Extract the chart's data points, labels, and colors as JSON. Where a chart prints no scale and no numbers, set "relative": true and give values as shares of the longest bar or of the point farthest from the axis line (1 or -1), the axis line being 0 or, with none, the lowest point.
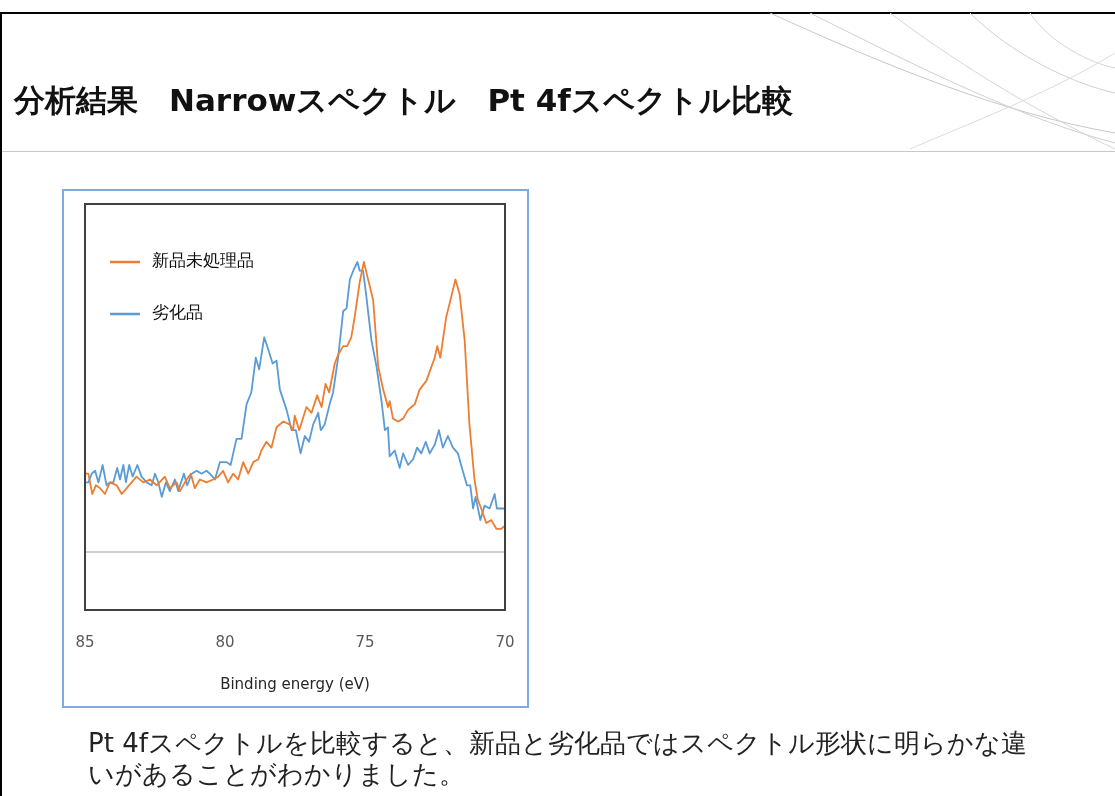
{
  "chart_data": {
    "type": "line",
    "title": "分析結果　Narrowスペクトル　Pt 4fスペクトル比較",
    "xlabel": "Binding energy (eV)",
    "relative": true,
    "xlim": [
      85,
      70
    ],
    "xticks": [
      85,
      80,
      75,
      70
    ],
    "grid": false,
    "legend": "top left",
    "marker": "none",
    "line_style": "solid",
    "annotations": [
      "Pt 4fスペクトルを比較すると、新品と劣化品ではスペクトル形状に明らかな違いがあることがわかりました。"
    ],
    "series": [
      {
        "name": "新品未処理品",
        "color": "#ed7d31",
        "x": [
          84.98,
          84.88,
          84.74,
          84.61,
          84.46,
          84.29,
          84.11,
          83.87,
          83.69,
          83.51,
          83.16,
          82.92,
          82.68,
          82.44,
          82.15,
          81.97,
          81.73,
          81.61,
          81.37,
          81.22,
          81.08,
          80.9,
          80.66,
          80.42,
          80.24,
          80.07,
          79.89,
          79.71,
          79.53,
          79.35,
          79.17,
          78.99,
          78.81,
          78.7,
          78.52,
          78.34,
          78.16,
          77.92,
          77.69,
          77.57,
          77.51,
          77.35,
          77.09,
          76.91,
          76.71,
          76.55,
          76.41,
          76.28,
          76.08,
          75.96,
          75.78,
          75.64,
          75.49,
          75.37,
          75.19,
          75.04,
          74.89,
          74.71,
          74.53,
          74.35,
          74.18,
          74.12,
          74.0,
          73.82,
          73.64,
          73.46,
          73.34,
          73.22,
          73.05,
          72.81,
          72.51,
          72.42,
          72.31,
          72.1,
          71.92,
          71.77,
          71.62,
          71.44,
          71.27,
          71.09,
          70.97,
          70.85,
          70.67,
          70.49,
          70.31,
          70.13,
          70.01
        ],
        "values": [
          0.27,
          0.27,
          0.2,
          0.23,
          0.22,
          0.2,
          0.24,
          0.23,
          0.2,
          0.22,
          0.26,
          0.24,
          0.25,
          0.23,
          0.26,
          0.22,
          0.24,
          0.21,
          0.25,
          0.27,
          0.22,
          0.25,
          0.24,
          0.25,
          0.26,
          0.28,
          0.24,
          0.27,
          0.25,
          0.31,
          0.27,
          0.31,
          0.32,
          0.35,
          0.38,
          0.36,
          0.43,
          0.45,
          0.44,
          0.42,
          0.47,
          0.42,
          0.5,
          0.48,
          0.54,
          0.5,
          0.58,
          0.55,
          0.65,
          0.68,
          0.71,
          0.71,
          0.74,
          0.81,
          0.93,
          1.0,
          0.94,
          0.87,
          0.64,
          0.56,
          0.5,
          0.52,
          0.46,
          0.45,
          0.46,
          0.49,
          0.5,
          0.51,
          0.56,
          0.59,
          0.67,
          0.71,
          0.67,
          0.81,
          0.88,
          0.94,
          0.89,
          0.73,
          0.44,
          0.25,
          0.18,
          0.15,
          0.1,
          0.11,
          0.08,
          0.08,
          0.09
        ]
      },
      {
        "name": "劣化品",
        "color": "#5b9bd5",
        "x": [
          84.98,
          84.88,
          84.76,
          84.64,
          84.52,
          84.37,
          84.23,
          84.11,
          83.99,
          83.85,
          83.75,
          83.63,
          83.54,
          83.42,
          83.3,
          83.13,
          82.98,
          82.8,
          82.62,
          82.5,
          82.38,
          82.26,
          82.11,
          81.97,
          81.79,
          81.67,
          81.47,
          81.35,
          81.19,
          81.01,
          80.84,
          80.66,
          80.54,
          80.36,
          80.18,
          79.94,
          79.8,
          79.59,
          79.41,
          79.23,
          79.06,
          78.9,
          78.78,
          78.6,
          78.46,
          78.3,
          78.16,
          78.04,
          77.8,
          77.62,
          77.47,
          77.3,
          77.15,
          77.0,
          76.85,
          76.67,
          76.58,
          76.44,
          76.26,
          76.14,
          75.96,
          75.78,
          75.66,
          75.54,
          75.42,
          75.27,
          75.19,
          75.07,
          74.95,
          74.77,
          74.59,
          74.41,
          74.29,
          74.18,
          74.12,
          73.94,
          73.76,
          73.64,
          73.46,
          73.28,
          73.14,
          72.99,
          72.83,
          72.69,
          72.51,
          72.36,
          72.22,
          72.04,
          71.86,
          71.68,
          71.51,
          71.36,
          71.24,
          71.14,
          71.05,
          70.88,
          70.73,
          70.55,
          70.37,
          70.29,
          70.2,
          70.01
        ],
        "values": [
          0.24,
          0.24,
          0.27,
          0.28,
          0.24,
          0.3,
          0.23,
          0.24,
          0.24,
          0.29,
          0.25,
          0.3,
          0.24,
          0.3,
          0.26,
          0.3,
          0.26,
          0.24,
          0.23,
          0.27,
          0.24,
          0.19,
          0.24,
          0.21,
          0.25,
          0.21,
          0.27,
          0.23,
          0.27,
          0.28,
          0.27,
          0.28,
          0.27,
          0.25,
          0.31,
          0.31,
          0.3,
          0.39,
          0.39,
          0.51,
          0.55,
          0.67,
          0.63,
          0.74,
          0.7,
          0.65,
          0.66,
          0.56,
          0.49,
          0.42,
          0.42,
          0.34,
          0.4,
          0.38,
          0.44,
          0.48,
          0.42,
          0.44,
          0.51,
          0.55,
          0.67,
          0.83,
          0.84,
          0.94,
          0.97,
          1.0,
          0.97,
          0.97,
          0.88,
          0.73,
          0.64,
          0.52,
          0.42,
          0.43,
          0.33,
          0.35,
          0.29,
          0.34,
          0.3,
          0.32,
          0.36,
          0.34,
          0.38,
          0.34,
          0.37,
          0.42,
          0.36,
          0.4,
          0.36,
          0.34,
          0.28,
          0.23,
          0.23,
          0.15,
          0.19,
          0.11,
          0.16,
          0.15,
          0.2,
          0.15,
          0.15,
          0.15
        ]
      }
    ]
  }
}
